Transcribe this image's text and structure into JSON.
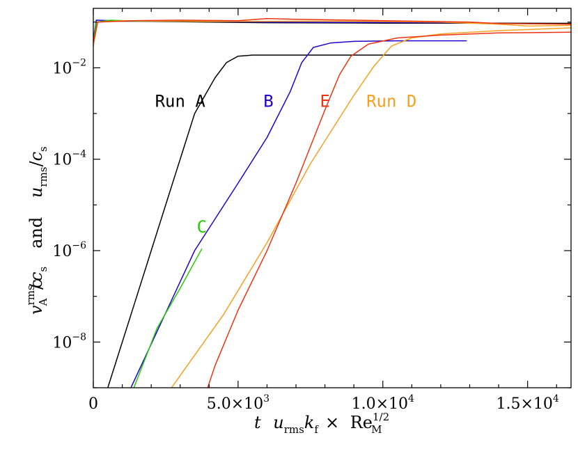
{
  "chart_data": {
    "type": "line",
    "xlabel": {
      "t": "t",
      "u": "u",
      "rms": "rms",
      "k": "k",
      "f": "f",
      "times": "×",
      "Re": "Re",
      "frac": "1/2",
      "M": "M"
    },
    "ylabel": {
      "v": "v",
      "rms": "rms",
      "A": "A",
      "c": "c",
      "s": "s",
      "and": "and",
      "u": "u",
      "rms2": "rms",
      "c2": "c",
      "s2": "s"
    },
    "x_range": [
      0,
      16500
    ],
    "y_log": true,
    "y_range": [
      1e-09,
      0.2
    ],
    "x_ticks": [
      {
        "value": 0,
        "label": "0"
      },
      {
        "value": 5000,
        "mant": "5.0×10",
        "exp": "3"
      },
      {
        "value": 10000,
        "mant": "1.0×10",
        "exp": "4"
      },
      {
        "value": 15000,
        "mant": "1.5×10",
        "exp": "4"
      }
    ],
    "y_ticks": [
      {
        "value": 0.01,
        "base": "10",
        "exp": "−2"
      },
      {
        "value": 0.0001,
        "base": "10",
        "exp": "−4"
      },
      {
        "value": 1e-06,
        "base": "10",
        "exp": "−6"
      },
      {
        "value": 1e-08,
        "base": "10",
        "exp": "−8"
      }
    ],
    "series_labels": [
      {
        "name": "Run A",
        "color": "#000000",
        "x": 3000,
        "y": 0.0014
      },
      {
        "name": "B",
        "color": "#2200cc",
        "x": 6050,
        "y": 0.0014
      },
      {
        "name": "E",
        "color": "#ee3311",
        "x": 8000,
        "y": 0.0014
      },
      {
        "name": "Run D",
        "color": "#f5a020",
        "x": 10300,
        "y": 0.0014
      },
      {
        "name": "C",
        "color": "#22cc00",
        "x": 3750,
        "y": 2.5e-06
      }
    ],
    "series": [
      {
        "key": "A",
        "color": "#000000",
        "magnetic": [
          [
            500,
            1e-09
          ],
          [
            1500,
            1e-07
          ],
          [
            2500,
            1e-05
          ],
          [
            3500,
            0.001
          ],
          [
            4200,
            0.006
          ],
          [
            4600,
            0.013
          ],
          [
            5000,
            0.018
          ],
          [
            5500,
            0.019
          ],
          [
            16500,
            0.019
          ]
        ],
        "velocity": [
          [
            0,
            0.03
          ],
          [
            100,
            0.1
          ],
          [
            500,
            0.105
          ],
          [
            2000,
            0.104
          ],
          [
            4000,
            0.1
          ],
          [
            6000,
            0.097
          ],
          [
            10000,
            0.095
          ],
          [
            16500,
            0.094
          ]
        ]
      },
      {
        "key": "B",
        "color": "#2200cc",
        "magnetic": [
          [
            1300,
            1e-09
          ],
          [
            3500,
            1e-06
          ],
          [
            5000,
            3e-05
          ],
          [
            6000,
            0.0003
          ],
          [
            6800,
            0.003
          ],
          [
            7200,
            0.013
          ],
          [
            7600,
            0.028
          ],
          [
            8200,
            0.035
          ],
          [
            9000,
            0.038
          ],
          [
            10500,
            0.039
          ],
          [
            12900,
            0.039
          ]
        ],
        "velocity": [
          [
            0,
            0.04
          ],
          [
            100,
            0.11
          ],
          [
            600,
            0.108
          ],
          [
            3000,
            0.105
          ],
          [
            6000,
            0.1
          ],
          [
            9000,
            0.098
          ],
          [
            12900,
            0.097
          ]
        ]
      },
      {
        "key": "C",
        "color": "#22cc00",
        "magnetic": [
          [
            1400,
            1e-09
          ],
          [
            2200,
            2e-08
          ],
          [
            3000,
            1.5e-07
          ],
          [
            3750,
            1.1e-06
          ]
        ],
        "velocity": [
          [
            0,
            0.035
          ],
          [
            100,
            0.1
          ],
          [
            600,
            0.11
          ],
          [
            1500,
            0.105
          ],
          [
            2500,
            0.108
          ],
          [
            3750,
            0.107
          ]
        ]
      },
      {
        "key": "D",
        "color": "#f5a020",
        "magnetic": [
          [
            2700,
            1e-09
          ],
          [
            4500,
            4e-08
          ],
          [
            6000,
            1.5e-06
          ],
          [
            7500,
            8e-05
          ],
          [
            9000,
            0.0025
          ],
          [
            9700,
            0.011
          ],
          [
            10300,
            0.03
          ],
          [
            11000,
            0.045
          ],
          [
            12000,
            0.055
          ],
          [
            14000,
            0.065
          ],
          [
            16500,
            0.075
          ]
        ],
        "velocity": [
          [
            0,
            0.03
          ],
          [
            150,
            0.1
          ],
          [
            1000,
            0.107
          ],
          [
            4000,
            0.103
          ],
          [
            8000,
            0.105
          ],
          [
            10000,
            0.103
          ],
          [
            12000,
            0.1
          ],
          [
            14000,
            0.09
          ],
          [
            15000,
            0.082
          ],
          [
            16500,
            0.085
          ]
        ]
      },
      {
        "key": "E",
        "color": "#ee3311",
        "magnetic": [
          [
            3950,
            1e-09
          ],
          [
            4200,
            3e-09
          ],
          [
            5000,
            5e-08
          ],
          [
            6000,
            1e-06
          ],
          [
            7000,
            3e-05
          ],
          [
            8000,
            0.0012
          ],
          [
            8500,
            0.007
          ],
          [
            8900,
            0.018
          ],
          [
            9500,
            0.033
          ],
          [
            10500,
            0.045
          ],
          [
            12000,
            0.052
          ],
          [
            14000,
            0.058
          ],
          [
            16500,
            0.06
          ]
        ],
        "velocity": [
          [
            0,
            0.035
          ],
          [
            150,
            0.1
          ],
          [
            1500,
            0.108
          ],
          [
            3000,
            0.11
          ],
          [
            5000,
            0.107
          ],
          [
            6000,
            0.12
          ],
          [
            7000,
            0.115
          ],
          [
            9000,
            0.11
          ],
          [
            11000,
            0.105
          ],
          [
            13000,
            0.1
          ],
          [
            14000,
            0.093
          ],
          [
            16500,
            0.09
          ]
        ]
      }
    ]
  }
}
